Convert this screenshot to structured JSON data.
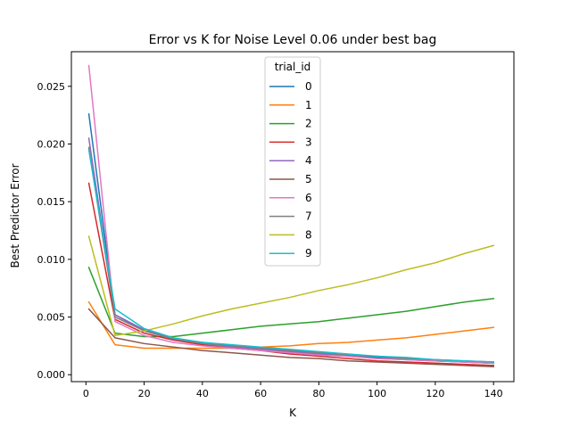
{
  "chart_data": {
    "type": "line",
    "title": "Error vs K for Noise Level 0.06 under best bag",
    "xlabel": "K",
    "ylabel": "Best Predictor Error",
    "xlim": [
      -5,
      147
    ],
    "ylim": [
      -0.0006,
      0.028
    ],
    "xticks": [
      0,
      20,
      40,
      60,
      80,
      100,
      120,
      140
    ],
    "xtick_labels": [
      "0",
      "20",
      "40",
      "60",
      "80",
      "100",
      "120",
      "140"
    ],
    "yticks": [
      0.0,
      0.005,
      0.01,
      0.015,
      0.02,
      0.025
    ],
    "ytick_labels": [
      "0.000",
      "0.005",
      "0.010",
      "0.015",
      "0.020",
      "0.025"
    ],
    "grid": false,
    "legend": {
      "title": "trial_id",
      "placement": "upper center"
    },
    "x": [
      1,
      10,
      20,
      30,
      40,
      50,
      60,
      70,
      80,
      90,
      100,
      110,
      120,
      130,
      140
    ],
    "series": [
      {
        "name": "0",
        "color": "#1f77b4",
        "values": [
          0.0226,
          0.0052,
          0.0038,
          0.0031,
          0.0028,
          0.0025,
          0.0023,
          0.0021,
          0.0019,
          0.0017,
          0.0015,
          0.0014,
          0.0012,
          0.0011,
          0.001
        ]
      },
      {
        "name": "1",
        "color": "#ff7f0e",
        "values": [
          0.0063,
          0.0026,
          0.0023,
          0.0023,
          0.0023,
          0.0023,
          0.0024,
          0.0025,
          0.0027,
          0.0028,
          0.003,
          0.0032,
          0.0035,
          0.0038,
          0.0041
        ]
      },
      {
        "name": "2",
        "color": "#2ca02c",
        "values": [
          0.0093,
          0.0036,
          0.0033,
          0.0033,
          0.0036,
          0.0039,
          0.0042,
          0.0044,
          0.0046,
          0.0049,
          0.0052,
          0.0055,
          0.0059,
          0.0063,
          0.0066
        ]
      },
      {
        "name": "3",
        "color": "#d62728",
        "values": [
          0.0166,
          0.0048,
          0.0036,
          0.003,
          0.0026,
          0.0023,
          0.0021,
          0.0018,
          0.0016,
          0.0014,
          0.0012,
          0.0011,
          0.001,
          0.0009,
          0.0008
        ]
      },
      {
        "name": "4",
        "color": "#9467bd",
        "values": [
          0.0205,
          0.0052,
          0.0039,
          0.0032,
          0.0027,
          0.0024,
          0.0022,
          0.002,
          0.0018,
          0.0016,
          0.0014,
          0.0013,
          0.0012,
          0.0011,
          0.001
        ]
      },
      {
        "name": "5",
        "color": "#8c564b",
        "values": [
          0.0057,
          0.0032,
          0.0027,
          0.0024,
          0.0021,
          0.0019,
          0.0017,
          0.0015,
          0.0014,
          0.0012,
          0.0011,
          0.001,
          0.0009,
          0.0008,
          0.0007
        ]
      },
      {
        "name": "6",
        "color": "#e377c2",
        "values": [
          0.0268,
          0.0046,
          0.0034,
          0.0028,
          0.0025,
          0.0023,
          0.0021,
          0.0019,
          0.0017,
          0.0016,
          0.0014,
          0.0013,
          0.0012,
          0.0011,
          0.001
        ]
      },
      {
        "name": "7",
        "color": "#7f7f7f",
        "values": [
          0.0197,
          0.005,
          0.0038,
          0.0031,
          0.0027,
          0.0025,
          0.0023,
          0.0021,
          0.0019,
          0.0017,
          0.0016,
          0.0014,
          0.0013,
          0.0012,
          0.0011
        ]
      },
      {
        "name": "8",
        "color": "#bcbd22",
        "values": [
          0.012,
          0.0034,
          0.0038,
          0.0044,
          0.0051,
          0.0057,
          0.0062,
          0.0067,
          0.0073,
          0.0078,
          0.0084,
          0.0091,
          0.0097,
          0.0105,
          0.0112
        ]
      },
      {
        "name": "9",
        "color": "#17becf",
        "values": [
          0.0195,
          0.0057,
          0.004,
          0.0032,
          0.0028,
          0.0026,
          0.0024,
          0.0022,
          0.002,
          0.0018,
          0.0016,
          0.0015,
          0.0013,
          0.0012,
          0.0011
        ]
      }
    ]
  }
}
